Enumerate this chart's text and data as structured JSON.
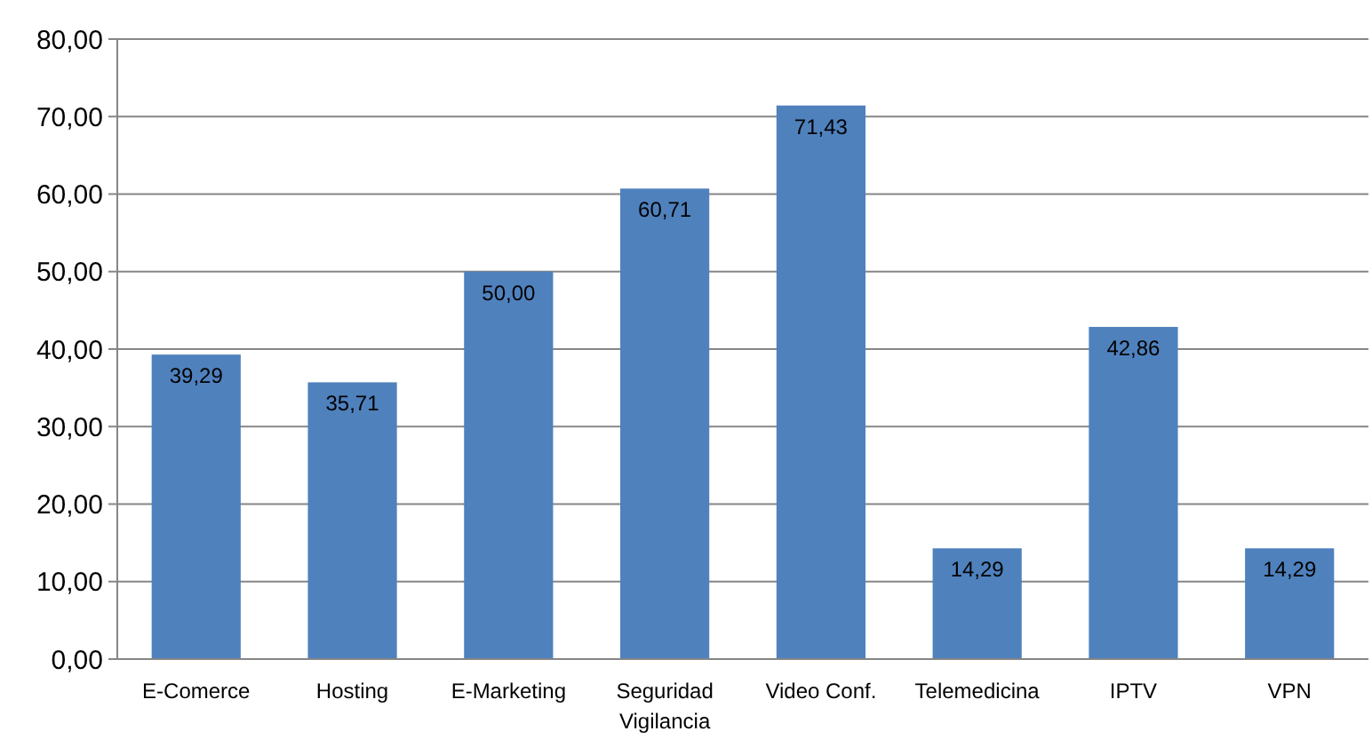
{
  "chart_data": {
    "type": "bar",
    "categories": [
      "E-Comerce",
      "Hosting",
      "E-Marketing",
      "Seguridad Vigilancia",
      "Video Conf.",
      "Telemedicina",
      "IPTV",
      "VPN"
    ],
    "values": [
      39.29,
      35.71,
      50.0,
      60.71,
      71.43,
      14.29,
      42.86,
      14.29
    ],
    "value_labels": [
      "39,29",
      "35,71",
      "50,00",
      "60,71",
      "71,43",
      "14,29",
      "42,86",
      "14,29"
    ],
    "color": "#4f81bd",
    "ylim": [
      0,
      80
    ],
    "yticks": [
      {
        "value": 0,
        "label": "0,00"
      },
      {
        "value": 10,
        "label": "10,00"
      },
      {
        "value": 20,
        "label": "20,00"
      },
      {
        "value": 30,
        "label": "30,00"
      },
      {
        "value": 40,
        "label": "40,00"
      },
      {
        "value": 50,
        "label": "50,00"
      },
      {
        "value": 60,
        "label": "60,00"
      },
      {
        "value": 70,
        "label": "70,00"
      },
      {
        "value": 80,
        "label": "80,00"
      }
    ],
    "grid": "y"
  }
}
